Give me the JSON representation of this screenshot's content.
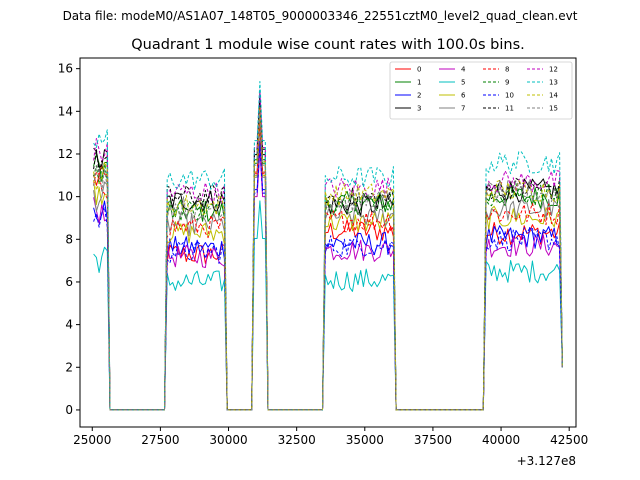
{
  "suptitle": "Data file: modeM0/AS1A07_148T05_9000003346_22551cztM0_level2_quad_clean.evt",
  "chart_data": {
    "type": "line",
    "title": "Quadrant 1 module wise count rates with 100.0s bins.",
    "xlabel": "",
    "ylabel": "",
    "x_offset_label": "+3.127e8",
    "xlim": [
      24550,
      42750
    ],
    "ylim": [
      -0.8,
      16.5
    ],
    "xticks": [
      25000,
      27500,
      30000,
      32500,
      35000,
      37500,
      40000,
      42500
    ],
    "yticks": [
      0,
      2,
      4,
      6,
      8,
      10,
      12,
      14,
      16
    ],
    "legend_location": "upper right",
    "time_bins": {
      "start": 25050,
      "end": 42250,
      "step": 100
    },
    "activity_windows": [
      {
        "start": 25050,
        "end": 25550
      },
      {
        "start": 27750,
        "end": 29850
      },
      {
        "start": 30950,
        "end": 31350
      },
      {
        "start": 33550,
        "end": 36050
      },
      {
        "start": 39450,
        "end": 42250
      }
    ],
    "series": [
      {
        "name": "0",
        "color": "#ff0000",
        "dash": false,
        "levels": [
          10.8,
          7.3,
          13.6,
          8.4,
          8.3
        ]
      },
      {
        "name": "1",
        "color": "#008000",
        "dash": false,
        "levels": [
          11.4,
          9.3,
          14.3,
          9.7,
          10.0
        ]
      },
      {
        "name": "2",
        "color": "#0000ff",
        "dash": false,
        "levels": [
          9.2,
          7.6,
          12.6,
          7.8,
          8.1
        ]
      },
      {
        "name": "3",
        "color": "#000000",
        "dash": false,
        "levels": [
          11.7,
          9.8,
          14.6,
          9.6,
          10.3
        ]
      },
      {
        "name": "4",
        "color": "#bf00bf",
        "dash": false,
        "levels": [
          9.4,
          7.2,
          12.2,
          7.5,
          7.7
        ]
      },
      {
        "name": "5",
        "color": "#00bfbf",
        "dash": false,
        "levels": [
          7.1,
          6.0,
          9.8,
          6.1,
          6.5
        ]
      },
      {
        "name": "6",
        "color": "#bfbf00",
        "dash": false,
        "levels": [
          10.3,
          8.3,
          13.4,
          8.8,
          9.0
        ]
      },
      {
        "name": "7",
        "color": "#808080",
        "dash": false,
        "levels": [
          10.0,
          8.7,
          13.3,
          9.1,
          9.4
        ]
      },
      {
        "name": "8",
        "color": "#ff0000",
        "dash": true,
        "levels": [
          10.5,
          8.6,
          13.5,
          8.9,
          9.2
        ]
      },
      {
        "name": "9",
        "color": "#008000",
        "dash": true,
        "levels": [
          11.2,
          9.4,
          14.1,
          9.8,
          10.1
        ]
      },
      {
        "name": "10",
        "color": "#0000ff",
        "dash": true,
        "levels": [
          9.0,
          7.4,
          12.4,
          7.7,
          8.0
        ]
      },
      {
        "name": "11",
        "color": "#000000",
        "dash": true,
        "levels": [
          11.6,
          10.0,
          14.9,
          9.9,
          10.4
        ]
      },
      {
        "name": "12",
        "color": "#bf00bf",
        "dash": true,
        "levels": [
          12.1,
          10.2,
          15.0,
          10.4,
          10.7
        ]
      },
      {
        "name": "13",
        "color": "#00bfbf",
        "dash": true,
        "levels": [
          12.6,
          10.8,
          15.4,
          10.9,
          11.6
        ]
      },
      {
        "name": "14",
        "color": "#bfbf00",
        "dash": true,
        "levels": [
          11.0,
          9.6,
          14.2,
          10.1,
          10.3
        ]
      },
      {
        "name": "15",
        "color": "#808080",
        "dash": true,
        "levels": [
          10.9,
          9.5,
          14.0,
          9.8,
          10.2
        ]
      }
    ]
  }
}
